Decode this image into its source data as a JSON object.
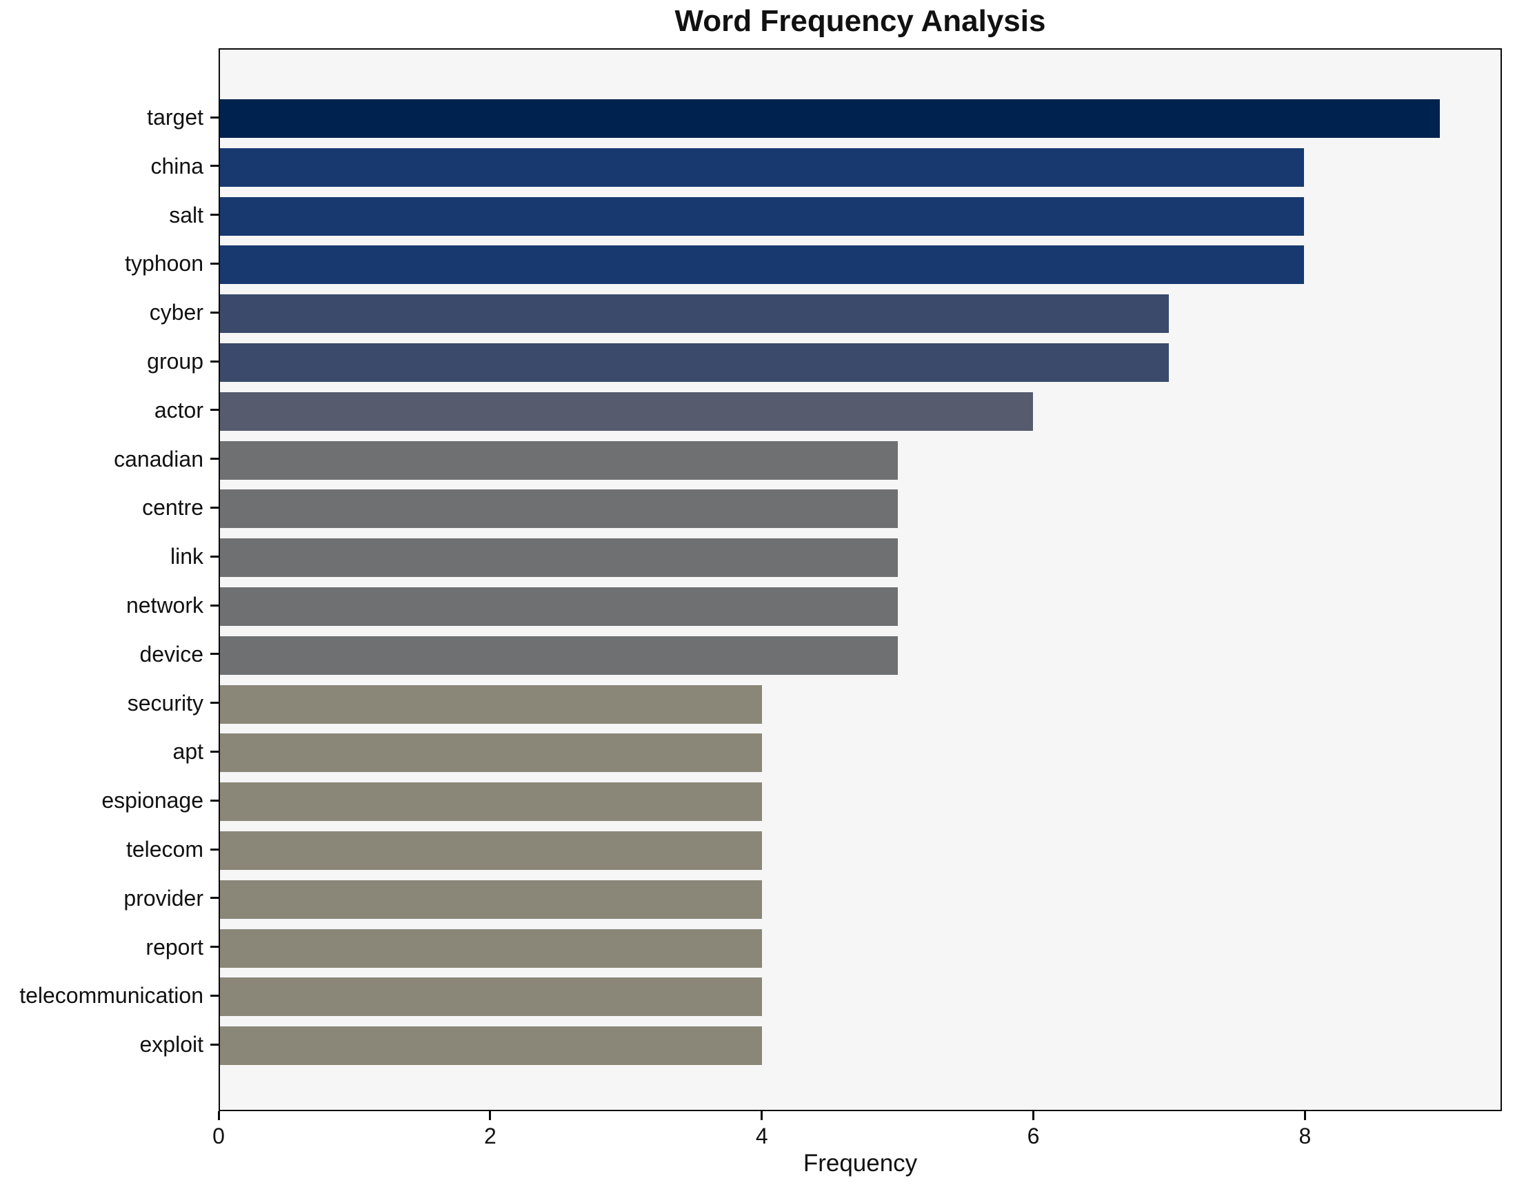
{
  "title": "Word Frequency Analysis",
  "chart_data": {
    "type": "bar",
    "orientation": "horizontal",
    "title": "Word Frequency Analysis",
    "xlabel": "Frequency",
    "ylabel": "",
    "categories": [
      "target",
      "china",
      "salt",
      "typhoon",
      "cyber",
      "group",
      "actor",
      "canadian",
      "centre",
      "link",
      "network",
      "device",
      "security",
      "apt",
      "espionage",
      "telecom",
      "provider",
      "report",
      "telecommunication",
      "exploit"
    ],
    "values": [
      9,
      8,
      8,
      8,
      7,
      7,
      6,
      5,
      5,
      5,
      5,
      5,
      4,
      4,
      4,
      4,
      4,
      4,
      4,
      4
    ],
    "bar_colors": [
      "#00224e",
      "#173970",
      "#173970",
      "#173970",
      "#3b4a6b",
      "#3b4a6b",
      "#565c6d",
      "#6f7072",
      "#6f7072",
      "#6f7072",
      "#6f7072",
      "#6f7072",
      "#8a8778",
      "#8a8778",
      "#8a8778",
      "#8a8778",
      "#8a8778",
      "#8a8778",
      "#8a8778",
      "#8a8778"
    ],
    "x_ticks": [
      0,
      2,
      4,
      6,
      8
    ],
    "xlim": [
      0,
      9.45
    ],
    "grid": false,
    "legend": "none",
    "plot_background": "#f6f6f7",
    "figure_background": "#ffffff",
    "axis_color": "#0a0a0a"
  }
}
